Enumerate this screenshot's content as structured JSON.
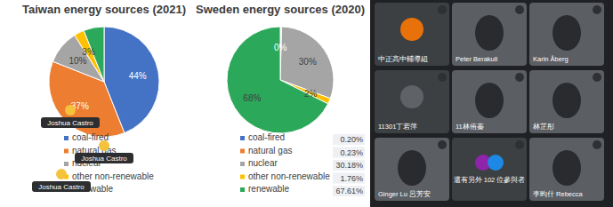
{
  "chart_data": [
    {
      "type": "pie",
      "title": "Taiwan energy sources (2021)",
      "categories": [
        "coal-fired",
        "natural gas",
        "nuclear",
        "other non-renewable",
        "renewable"
      ],
      "values": [
        44,
        37,
        10,
        3,
        6
      ],
      "value_labels": [
        "44%",
        "37%",
        "10%",
        "3%",
        null
      ],
      "colors": [
        "#4472c4",
        "#ed7d31",
        "#a5a5a5",
        "#ffc000",
        "#2ca85a"
      ],
      "data_labels": true,
      "legend": "bottom"
    },
    {
      "type": "pie",
      "title": "Sweden energy sources (2020)",
      "categories": [
        "coal-fired",
        "natural gas",
        "nuclear",
        "other non-renewable",
        "renewable"
      ],
      "values": [
        0.2,
        0.23,
        30.18,
        1.76,
        67.61
      ],
      "value_labels": [
        "0%",
        null,
        "30%",
        "2%",
        "68%"
      ],
      "legend_labels": [
        "0.20%",
        "0.23%",
        "30.18%",
        "1.76%",
        "67.61%"
      ],
      "colors": [
        "#4472c4",
        "#ed7d31",
        "#a5a5a5",
        "#ffc000",
        "#2ca85a"
      ],
      "data_labels": true,
      "legend": "bottom"
    }
  ],
  "reactions": [
    "Joshua Castro",
    "Joshua Castro",
    "Joshua Castro"
  ],
  "participants": [
    "中正高中輔導組",
    "Peter Berakull",
    "Karin Åberg",
    "11301丁若萍",
    "11林侑蓁",
    "林芷彤",
    "Ginger Lu 呂芳安",
    "還有另外 102 位參與者",
    "李昀什 Rebecca"
  ]
}
